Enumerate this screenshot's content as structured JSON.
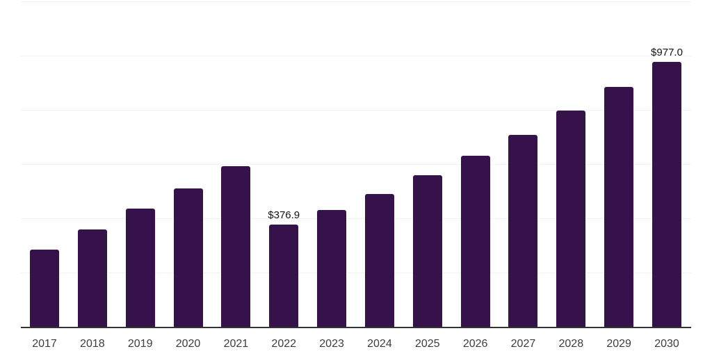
{
  "chart_data": {
    "type": "bar",
    "title": "",
    "xlabel": "",
    "ylabel": "",
    "categories": [
      "2017",
      "2018",
      "2019",
      "2020",
      "2021",
      "2022",
      "2023",
      "2024",
      "2025",
      "2026",
      "2027",
      "2028",
      "2029",
      "2030"
    ],
    "values": [
      284,
      360,
      435,
      511,
      593,
      376.9,
      432,
      491,
      560,
      632,
      708,
      798,
      885,
      977
    ],
    "data_labels": [
      "",
      "",
      "",
      "",
      "",
      "$376.9",
      "",
      "",
      "",
      "",
      "",
      "",
      "",
      "$977.0"
    ],
    "ylim": [
      0,
      1200
    ],
    "grid_step": 200,
    "grid": true,
    "legend": false,
    "x_axis_line": true,
    "y_tick_labels_visible": false
  },
  "colors": {
    "bar": "#35124A",
    "gridline": "#F2F2F2",
    "axis": "#333333",
    "value_label_text": "#111111",
    "tick_text": "#3D3D3D",
    "background": "#FFFFFF"
  }
}
